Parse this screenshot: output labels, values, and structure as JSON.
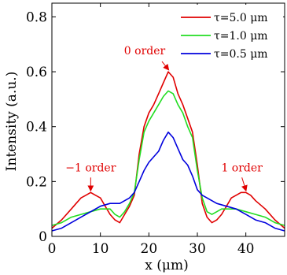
{
  "chart_data": {
    "type": "line",
    "xlabel": "x (μm)",
    "ylabel": "Intensity (a.u.)",
    "xlim": [
      0,
      48
    ],
    "ylim": [
      0,
      0.85
    ],
    "x_ticks": [
      "0",
      "10",
      "20",
      "30",
      "40"
    ],
    "y_ticks": [
      "0",
      "0.2",
      "0.4",
      "0.6",
      "0.8"
    ],
    "grid": false,
    "legend_position": "top-right",
    "annotation_color": "#e00000",
    "annotations": [
      {
        "text": "0 order",
        "x": 24,
        "y": 0.6
      },
      {
        "text": "−1 order",
        "x": 8,
        "y": 0.16
      },
      {
        "text": "1 order",
        "x": 40,
        "y": 0.16
      }
    ],
    "series": [
      {
        "name": "τ=5.0 μm",
        "color": "#e00000",
        "x": [
          0,
          2,
          4,
          5,
          6,
          7,
          8,
          9,
          10,
          11,
          12,
          13,
          14,
          15,
          16,
          17,
          18,
          19,
          20,
          21,
          22,
          23,
          24,
          25,
          26,
          27,
          28,
          29,
          30,
          31,
          32,
          33,
          34,
          35,
          36,
          37,
          38,
          39,
          40,
          41,
          42,
          44,
          46,
          48
        ],
        "y": [
          0.03,
          0.06,
          0.1,
          0.12,
          0.14,
          0.15,
          0.16,
          0.15,
          0.14,
          0.11,
          0.08,
          0.06,
          0.05,
          0.08,
          0.11,
          0.15,
          0.3,
          0.4,
          0.45,
          0.48,
          0.52,
          0.56,
          0.6,
          0.58,
          0.52,
          0.48,
          0.43,
          0.38,
          0.26,
          0.12,
          0.07,
          0.05,
          0.06,
          0.08,
          0.11,
          0.14,
          0.15,
          0.16,
          0.16,
          0.15,
          0.13,
          0.1,
          0.06,
          0.03
        ]
      },
      {
        "name": "τ=1.0 μm",
        "color": "#22dd22",
        "x": [
          0,
          2,
          4,
          6,
          8,
          10,
          11,
          12,
          13,
          14,
          15,
          16,
          17,
          18,
          19,
          20,
          21,
          22,
          23,
          24,
          25,
          26,
          27,
          28,
          29,
          30,
          31,
          32,
          33,
          34,
          35,
          36,
          37,
          38,
          40,
          42,
          44,
          46,
          48
        ],
        "y": [
          0.04,
          0.05,
          0.07,
          0.08,
          0.09,
          0.1,
          0.1,
          0.1,
          0.08,
          0.07,
          0.09,
          0.12,
          0.16,
          0.28,
          0.38,
          0.42,
          0.45,
          0.48,
          0.51,
          0.53,
          0.52,
          0.48,
          0.45,
          0.4,
          0.36,
          0.24,
          0.14,
          0.09,
          0.08,
          0.09,
          0.1,
          0.1,
          0.1,
          0.1,
          0.09,
          0.08,
          0.07,
          0.05,
          0.04
        ]
      },
      {
        "name": "τ=0.5 μm",
        "color": "#0000dd",
        "x": [
          0,
          2,
          4,
          6,
          8,
          10,
          12,
          14,
          15,
          16,
          17,
          18,
          19,
          20,
          21,
          22,
          23,
          24,
          25,
          26,
          27,
          28,
          29,
          30,
          31,
          32,
          33,
          34,
          36,
          38,
          40,
          42,
          44,
          46,
          48
        ],
        "y": [
          0.02,
          0.03,
          0.05,
          0.07,
          0.09,
          0.11,
          0.12,
          0.12,
          0.13,
          0.14,
          0.16,
          0.2,
          0.24,
          0.27,
          0.29,
          0.31,
          0.35,
          0.38,
          0.36,
          0.32,
          0.28,
          0.26,
          0.22,
          0.17,
          0.15,
          0.14,
          0.13,
          0.12,
          0.11,
          0.1,
          0.08,
          0.06,
          0.05,
          0.03,
          0.02
        ]
      }
    ]
  }
}
